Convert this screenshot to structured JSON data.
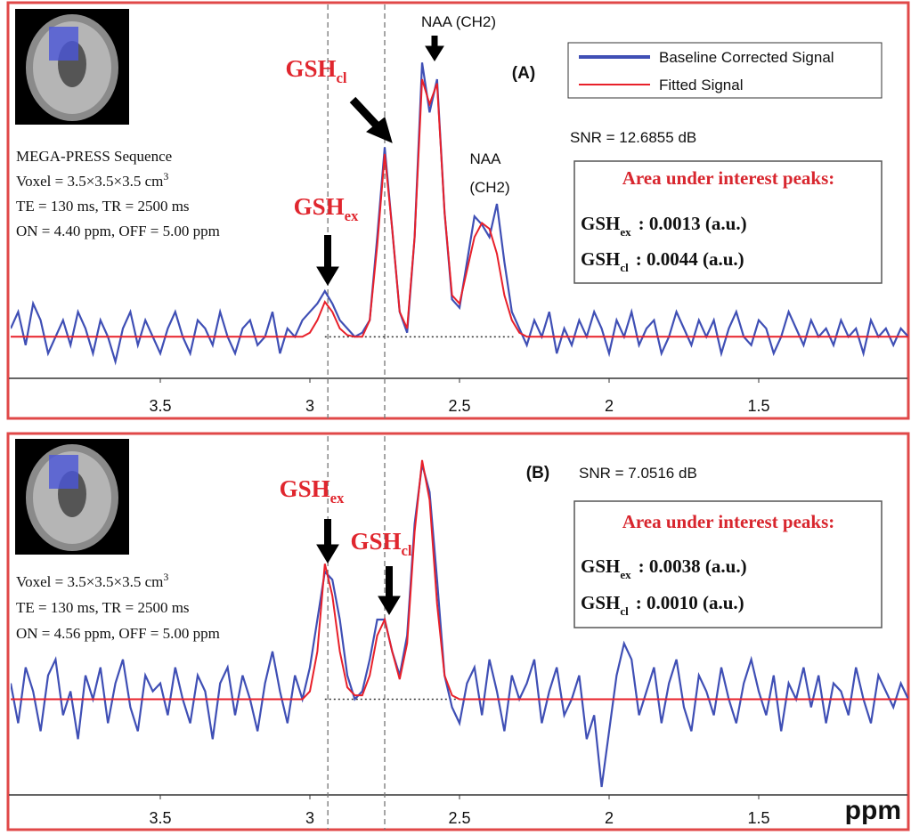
{
  "chart_data": [
    {
      "type": "line",
      "title": "(A)",
      "subtitle": "SNR = 12.6855 dB",
      "legend": "upper right",
      "x": [
        4,
        3.975,
        3.95,
        3.925,
        3.9,
        3.875,
        3.85,
        3.825,
        3.8,
        3.775,
        3.75,
        3.725,
        3.7,
        3.675,
        3.65,
        3.625,
        3.6,
        3.575,
        3.55,
        3.525,
        3.5,
        3.475,
        3.45,
        3.425,
        3.4,
        3.375,
        3.35,
        3.325,
        3.3,
        3.275,
        3.25,
        3.225,
        3.2,
        3.175,
        3.15,
        3.125,
        3.1,
        3.075,
        3.05,
        3.025,
        3,
        2.975,
        2.95,
        2.925,
        2.9,
        2.875,
        2.85,
        2.825,
        2.8,
        2.775,
        2.75,
        2.725,
        2.7,
        2.675,
        2.65,
        2.625,
        2.6,
        2.575,
        2.55,
        2.525,
        2.5,
        2.475,
        2.45,
        2.425,
        2.4,
        2.375,
        2.35,
        2.325,
        2.3,
        2.275,
        2.25,
        2.225,
        2.2,
        2.175,
        2.15,
        2.125,
        2.1,
        2.075,
        2.05,
        2.025,
        2,
        1.975,
        1.95,
        1.925,
        1.9,
        1.875,
        1.85,
        1.825,
        1.8,
        1.775,
        1.75,
        1.725,
        1.7,
        1.675,
        1.65,
        1.625,
        1.6,
        1.575,
        1.55,
        1.525,
        1.5,
        1.475,
        1.45,
        1.425,
        1.4,
        1.375,
        1.35,
        1.325,
        1.3,
        1.275,
        1.25,
        1.225,
        1.2,
        1.175,
        1.15,
        1.125,
        1.1,
        1.075,
        1.05,
        1.025,
        1
      ],
      "series": [
        {
          "name": "Baseline Corrected Signal",
          "color": "#3f4fb5",
          "values": [
            0.1,
            0.3,
            -0.1,
            0.4,
            0.2,
            -0.2,
            0,
            0.2,
            -0.1,
            0.3,
            0.1,
            -0.2,
            0.2,
            0,
            -0.3,
            0.1,
            0.3,
            -0.1,
            0.2,
            0,
            -0.2,
            0.1,
            0.3,
            0,
            -0.2,
            0.2,
            0.1,
            -0.1,
            0.3,
            0,
            -0.2,
            0.1,
            0.2,
            -0.1,
            0,
            0.3,
            -0.2,
            0.1,
            0,
            0.2,
            0.3,
            0.4,
            0.55,
            0.4,
            0.2,
            0.1,
            0,
            0.05,
            0.2,
            1.2,
            2.28,
            1.3,
            0.3,
            0.05,
            1.2,
            3.3,
            2.7,
            3.1,
            1.5,
            0.45,
            0.35,
            0.9,
            1.45,
            1.35,
            1.2,
            1.6,
            0.9,
            0.3,
            0.1,
            -0.1,
            0.2,
            0,
            0.3,
            -0.2,
            0.1,
            -0.1,
            0.2,
            0,
            0.3,
            0.1,
            -0.2,
            0.2,
            0,
            0.3,
            -0.1,
            0.1,
            0.2,
            -0.2,
            0,
            0.3,
            0.1,
            -0.1,
            0.2,
            0,
            0.2,
            -0.2,
            0.1,
            0.3,
            0,
            -0.1,
            0.2,
            0.1,
            -0.2,
            0,
            0.3,
            0.1,
            -0.1,
            0.2,
            0,
            0.1,
            -0.1,
            0.2,
            0,
            0.1,
            -0.2,
            0.2,
            0,
            0.1,
            -0.1,
            0.1,
            0
          ]
        },
        {
          "name": "Fitted Signal",
          "color": "#e8202a",
          "values": [
            0,
            0,
            0,
            0,
            0,
            0,
            0,
            0,
            0,
            0,
            0,
            0,
            0,
            0,
            0,
            0,
            0,
            0,
            0,
            0,
            0,
            0,
            0,
            0,
            0,
            0,
            0,
            0,
            0,
            0,
            0,
            0,
            0,
            0,
            0,
            0,
            0,
            0,
            0,
            0,
            0.05,
            0.2,
            0.42,
            0.3,
            0.1,
            0.02,
            0,
            0,
            0.2,
            1.1,
            2.2,
            1.3,
            0.3,
            0.1,
            1.2,
            3.1,
            2.8,
            3.05,
            1.5,
            0.5,
            0.4,
            0.8,
            1.2,
            1.37,
            1.3,
            1,
            0.5,
            0.2,
            0.05,
            0,
            0,
            0,
            0,
            0,
            0,
            0,
            0,
            0,
            0,
            0,
            0,
            0,
            0,
            0,
            0,
            0,
            0,
            0,
            0,
            0,
            0,
            0,
            0,
            0,
            0,
            0,
            0,
            0,
            0,
            0,
            0,
            0,
            0,
            0,
            0,
            0,
            0,
            0,
            0,
            0,
            0,
            0,
            0,
            0,
            0,
            0,
            0,
            0,
            0,
            0,
            0
          ]
        }
      ],
      "xlim": [
        4,
        1
      ],
      "xticks": [
        3.5,
        3,
        2.5,
        2,
        1.5
      ],
      "ylim": [
        -0.5,
        4
      ],
      "vlines": [
        2.94,
        2.75
      ],
      "baseline": {
        "y": 0,
        "x": [
          2.95,
          2.32
        ]
      },
      "annotations": [
        {
          "text": "NAA (CH2)"
        },
        {
          "text": "NAA"
        },
        {
          "text": "(CH2)"
        },
        {
          "text": "GSH",
          "sub": "cl"
        },
        {
          "text": "GSH",
          "sub": "ex"
        }
      ],
      "info_lines": [
        {
          "text": "MEGA-PRESS Sequence"
        },
        {
          "text": "Voxel = 3.5×3.5×3.5 cm",
          "sup": "3"
        },
        {
          "text": "TE = 130 ms, TR  = 2500 ms"
        },
        {
          "text": "ON = 4.40 ppm, OFF = 5.00 ppm"
        }
      ],
      "peak_box": {
        "title": "Area under interest peaks:",
        "rows": [
          {
            "text": "GSH",
            "sub": "ex",
            "value": ": 0.0013 (a.u.)"
          },
          {
            "text": "GSH",
            "sub": "cl",
            "value": ": 0.0044 (a.u.)"
          }
        ]
      }
    },
    {
      "type": "line",
      "title": "(B)",
      "subtitle": "SNR = 7.0516 dB",
      "xlabel": "ppm",
      "x": [
        4,
        3.975,
        3.95,
        3.925,
        3.9,
        3.875,
        3.85,
        3.825,
        3.8,
        3.775,
        3.75,
        3.725,
        3.7,
        3.675,
        3.65,
        3.625,
        3.6,
        3.575,
        3.55,
        3.525,
        3.5,
        3.475,
        3.45,
        3.425,
        3.4,
        3.375,
        3.35,
        3.325,
        3.3,
        3.275,
        3.25,
        3.225,
        3.2,
        3.175,
        3.15,
        3.125,
        3.1,
        3.075,
        3.05,
        3.025,
        3,
        2.975,
        2.95,
        2.925,
        2.9,
        2.875,
        2.85,
        2.825,
        2.8,
        2.775,
        2.75,
        2.725,
        2.7,
        2.675,
        2.65,
        2.625,
        2.6,
        2.575,
        2.55,
        2.525,
        2.5,
        2.475,
        2.45,
        2.425,
        2.4,
        2.375,
        2.35,
        2.325,
        2.3,
        2.275,
        2.25,
        2.225,
        2.2,
        2.175,
        2.15,
        2.125,
        2.1,
        2.075,
        2.05,
        2.025,
        2,
        1.975,
        1.95,
        1.925,
        1.9,
        1.875,
        1.85,
        1.825,
        1.8,
        1.775,
        1.75,
        1.725,
        1.7,
        1.675,
        1.65,
        1.625,
        1.6,
        1.575,
        1.55,
        1.525,
        1.5,
        1.475,
        1.45,
        1.425,
        1.4,
        1.375,
        1.35,
        1.325,
        1.3,
        1.275,
        1.25,
        1.225,
        1.2,
        1.175,
        1.15,
        1.125,
        1.1,
        1.075,
        1.05,
        1.025,
        1
      ],
      "series": [
        {
          "name": "Baseline Corrected Signal",
          "color": "#3f4fb5",
          "values": [
            0.2,
            -0.3,
            0.4,
            0.1,
            -0.4,
            0.3,
            0.5,
            -0.2,
            0.1,
            -0.5,
            0.3,
            0,
            0.4,
            -0.3,
            0.2,
            0.5,
            -0.1,
            -0.4,
            0.3,
            0.1,
            0.2,
            -0.2,
            0.4,
            0,
            -0.3,
            0.3,
            0.1,
            -0.5,
            0.2,
            0.4,
            -0.2,
            0.3,
            0,
            -0.4,
            0.2,
            0.6,
            0.1,
            -0.3,
            0.3,
            0,
            0.4,
            1,
            1.6,
            1.5,
            1,
            0.3,
            0,
            0.1,
            0.5,
            1,
            1,
            0.6,
            0.3,
            0.8,
            2.2,
            2.95,
            2.6,
            1.5,
            0.3,
            -0.1,
            -0.3,
            0.2,
            0.4,
            -0.2,
            0.5,
            0.1,
            -0.4,
            0.3,
            0,
            0.2,
            0.5,
            -0.3,
            0.1,
            0.4,
            -0.2,
            0,
            0.3,
            -0.5,
            -0.2,
            -1.1,
            -0.4,
            0.3,
            0.7,
            0.5,
            -0.2,
            0.1,
            0.4,
            -0.3,
            0.2,
            0.5,
            -0.1,
            -0.4,
            0.3,
            0.1,
            -0.2,
            0.4,
            0,
            -0.3,
            0.2,
            0.5,
            0.1,
            -0.2,
            0.3,
            -0.4,
            0.2,
            0,
            0.4,
            -0.1,
            0.3,
            -0.3,
            0.2,
            0.1,
            -0.2,
            0.4,
            0,
            -0.3,
            0.3,
            0.1,
            -0.1,
            0.2,
            0
          ]
        },
        {
          "name": "Fitted Signal",
          "color": "#e8202a",
          "values": [
            0,
            0,
            0,
            0,
            0,
            0,
            0,
            0,
            0,
            0,
            0,
            0,
            0,
            0,
            0,
            0,
            0,
            0,
            0,
            0,
            0,
            0,
            0,
            0,
            0,
            0,
            0,
            0,
            0,
            0,
            0,
            0,
            0,
            0,
            0,
            0,
            0,
            0,
            0,
            0,
            0.1,
            0.6,
            1.7,
            1.3,
            0.6,
            0.15,
            0.05,
            0.05,
            0.3,
            0.8,
            1,
            0.6,
            0.25,
            0.7,
            2.1,
            3,
            2.5,
            1.2,
            0.3,
            0.05,
            0,
            0,
            0,
            0,
            0,
            0,
            0,
            0,
            0,
            0,
            0,
            0,
            0,
            0,
            0,
            0,
            0,
            0,
            0,
            0,
            0,
            0,
            0,
            0,
            0,
            0,
            0,
            0,
            0,
            0,
            0,
            0,
            0,
            0,
            0,
            0,
            0,
            0,
            0,
            0,
            0,
            0,
            0,
            0,
            0,
            0,
            0,
            0,
            0,
            0,
            0,
            0,
            0,
            0,
            0,
            0,
            0,
            0,
            0,
            0,
            0
          ]
        }
      ],
      "xlim": [
        4,
        1
      ],
      "xticks": [
        3.5,
        3,
        2.5,
        2,
        1.5
      ],
      "ylim": [
        -1.2,
        3.3
      ],
      "vlines": [
        2.94,
        2.75
      ],
      "baseline": {
        "y": 0,
        "x": [
          2.95,
          2.45
        ]
      },
      "annotations": [
        {
          "text": "GSH",
          "sub": "ex"
        },
        {
          "text": "GSH",
          "sub": "cl"
        }
      ],
      "info_lines": [
        {
          "text": "Voxel = 3.5×3.5×3.5 cm",
          "sup": "3"
        },
        {
          "text": "TE = 130 ms, TR  = 2500 ms"
        },
        {
          "text": "ON = 4.56 ppm, OFF = 5.00 ppm"
        }
      ],
      "peak_box": {
        "title": "Area under interest peaks:",
        "rows": [
          {
            "text": "GSH",
            "sub": "ex",
            "value": ": 0.0038 (a.u.)"
          },
          {
            "text": "GSH",
            "sub": "cl",
            "value": ": 0.0010 (a.u.)"
          }
        ]
      }
    }
  ]
}
